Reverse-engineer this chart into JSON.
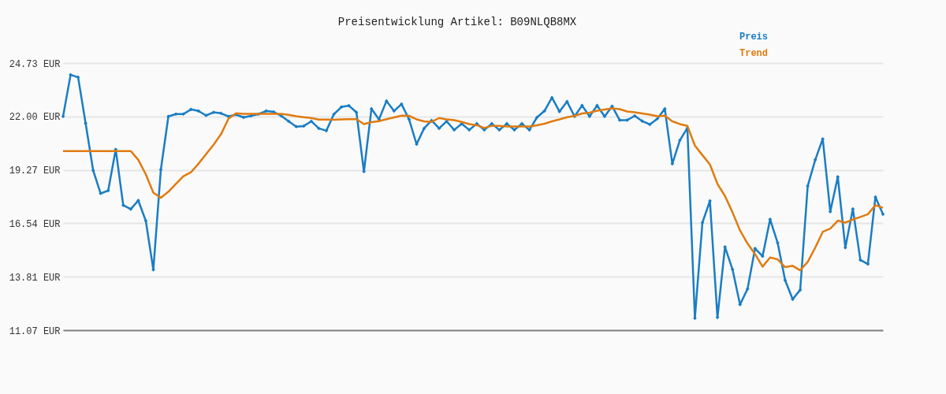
{
  "chart_data": {
    "type": "line",
    "title": "Preisentwicklung Artikel: B09NLQB8MX",
    "categories": [
      null,
      null,
      null,
      null,
      null,
      null,
      null,
      null,
      null,
      null,
      null,
      null,
      null,
      null,
      null,
      null,
      null,
      null,
      null,
      null,
      null,
      null,
      null,
      null,
      null,
      null,
      null,
      null,
      null,
      null,
      null,
      null,
      null,
      null,
      null,
      null,
      null,
      null,
      null,
      null,
      null,
      null,
      null,
      null,
      null,
      null,
      null,
      null,
      null,
      null,
      null,
      null,
      null,
      null,
      null,
      null,
      null,
      null,
      null,
      null,
      null,
      null,
      null,
      null,
      null,
      null,
      null,
      null,
      null,
      null,
      null,
      null,
      null,
      null,
      null,
      null,
      null,
      null,
      null,
      null,
      null,
      null,
      null,
      null,
      null,
      null,
      null,
      null,
      null,
      null,
      null,
      null,
      null,
      null,
      null,
      null,
      null,
      null,
      null,
      null,
      null,
      null,
      null,
      null,
      null,
      null,
      null,
      null,
      null,
      null
    ],
    "series": [
      {
        "name": "Preis",
        "color": "#1a7dc4",
        "marker": "diamond",
        "values": [
          22.0,
          24.13,
          24.0,
          21.65,
          19.24,
          18.06,
          18.21,
          20.31,
          17.46,
          17.26,
          17.7,
          16.66,
          14.16,
          19.28,
          22.0,
          22.12,
          22.12,
          22.36,
          22.28,
          22.05,
          22.21,
          22.16,
          22.0,
          22.09,
          21.95,
          22.03,
          22.12,
          22.28,
          22.23,
          22.03,
          21.75,
          21.48,
          21.51,
          21.75,
          21.39,
          21.27,
          22.11,
          22.48,
          22.55,
          22.21,
          19.18,
          22.39,
          21.85,
          22.79,
          22.28,
          22.63,
          21.85,
          20.58,
          21.39,
          21.79,
          21.39,
          21.75,
          21.31,
          21.63,
          21.31,
          21.63,
          21.31,
          21.63,
          21.31,
          21.63,
          21.31,
          21.63,
          21.31,
          21.95,
          22.28,
          22.96,
          22.25,
          22.76,
          22.0,
          22.56,
          22.0,
          22.56,
          22.0,
          22.52,
          21.81,
          21.81,
          22.03,
          21.76,
          21.59,
          21.88,
          22.39,
          19.58,
          20.78,
          21.41,
          11.68,
          16.57,
          17.68,
          11.72,
          15.33,
          14.18,
          12.38,
          13.18,
          15.25,
          14.85,
          16.74,
          15.54,
          13.62,
          12.65,
          13.13,
          18.44,
          19.78,
          20.85,
          17.13,
          18.91,
          15.29,
          17.27,
          14.66,
          14.45,
          17.88,
          17.0
        ]
      },
      {
        "name": "Trend",
        "color": "#e07b10",
        "marker": "none",
        "values": [
          20.23,
          20.23,
          20.23,
          20.23,
          20.23,
          20.23,
          20.23,
          20.23,
          20.23,
          20.23,
          19.78,
          19.04,
          18.1,
          17.84,
          18.15,
          18.55,
          18.94,
          19.14,
          19.58,
          20.07,
          20.55,
          21.09,
          21.89,
          22.16,
          22.13,
          22.13,
          22.13,
          22.13,
          22.13,
          22.13,
          22.08,
          22.01,
          21.96,
          21.92,
          21.84,
          21.84,
          21.83,
          21.85,
          21.86,
          21.86,
          21.61,
          21.71,
          21.76,
          21.86,
          21.95,
          22.04,
          22.03,
          21.85,
          21.75,
          21.72,
          21.92,
          21.85,
          21.81,
          21.72,
          21.61,
          21.55,
          21.41,
          21.52,
          21.52,
          21.49,
          21.49,
          21.49,
          21.49,
          21.55,
          21.63,
          21.75,
          21.85,
          21.96,
          22.03,
          22.15,
          22.19,
          22.29,
          22.35,
          22.41,
          22.37,
          22.25,
          22.21,
          22.15,
          22.09,
          22.01,
          22.04,
          21.75,
          21.61,
          21.52,
          20.51,
          20.02,
          19.54,
          18.55,
          17.93,
          17.1,
          16.17,
          15.5,
          14.96,
          14.32,
          14.79,
          14.69,
          14.29,
          14.36,
          14.13,
          14.56,
          15.29,
          16.1,
          16.26,
          16.67,
          16.57,
          16.73,
          16.86,
          17.0,
          17.46,
          17.33
        ]
      }
    ],
    "ylim": [
      11.07,
      24.73
    ],
    "yticks": [
      {
        "value": 11.07,
        "label": "11.07 EUR"
      },
      {
        "value": 13.81,
        "label": "13.81 EUR"
      },
      {
        "value": 16.54,
        "label": "16.54 EUR"
      },
      {
        "value": 19.27,
        "label": "19.27 EUR"
      },
      {
        "value": 22.0,
        "label": "22.00 EUR"
      },
      {
        "value": 24.73,
        "label": "24.73 EUR"
      }
    ],
    "grid": "y",
    "legend": "top right",
    "tick_labels": "y",
    "line_style": "solid"
  }
}
